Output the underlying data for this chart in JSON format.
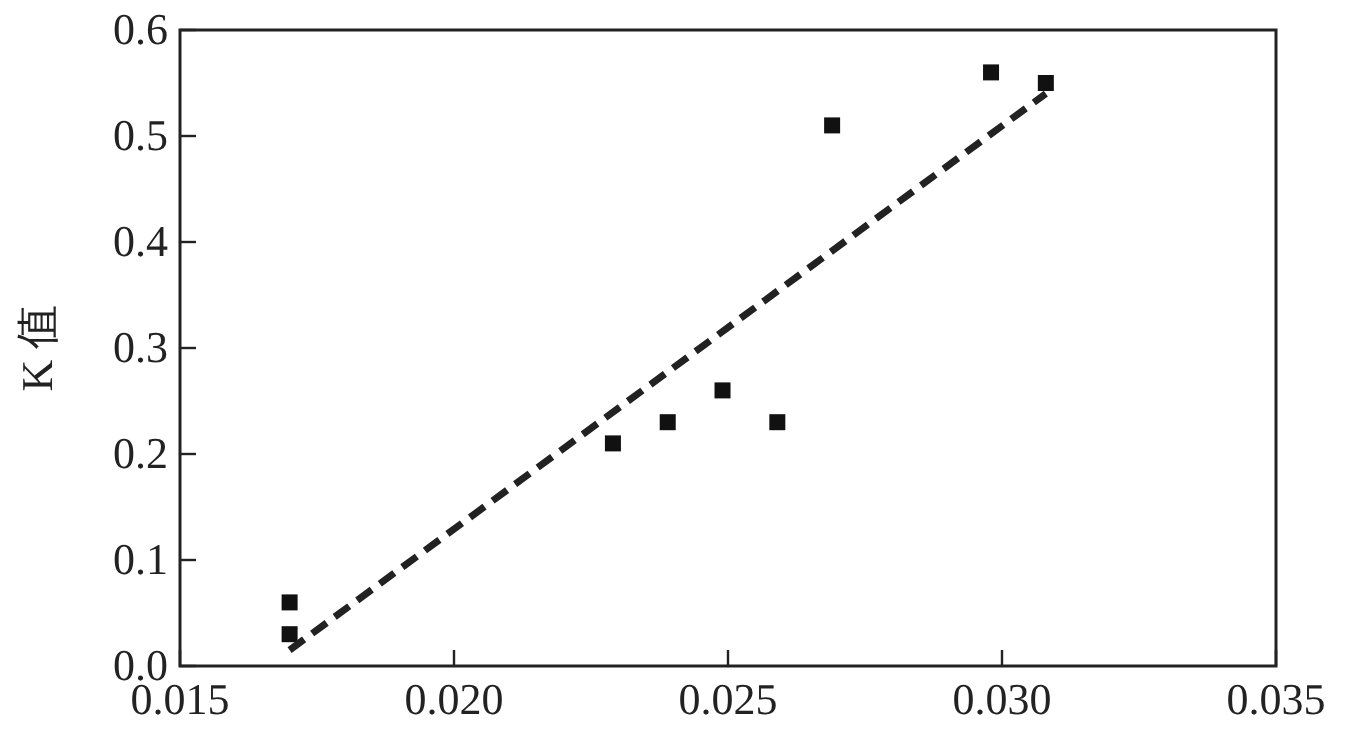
{
  "chart_data": {
    "type": "scatter",
    "ylabel": "K 值",
    "xlim": [
      0.015,
      0.035
    ],
    "ylim": [
      0,
      0.6
    ],
    "xticks": [
      {
        "value": 0.015,
        "label": "0.015"
      },
      {
        "value": 0.02,
        "label": "0.020"
      },
      {
        "value": 0.025,
        "label": "0.025"
      },
      {
        "value": 0.03,
        "label": "0.030"
      },
      {
        "value": 0.035,
        "label": "0.035"
      }
    ],
    "yticks": [
      {
        "value": 0,
        "label": "0.0"
      },
      {
        "value": 0.1,
        "label": "0.1"
      },
      {
        "value": 0.2,
        "label": "0.2"
      },
      {
        "value": 0.3,
        "label": "0.3"
      },
      {
        "value": 0.4,
        "label": "0.4"
      },
      {
        "value": 0.5,
        "label": "0.5"
      },
      {
        "value": 0.6,
        "label": "0.6"
      }
    ],
    "grid": false,
    "series": [
      {
        "type": "scatter",
        "color": "#111111",
        "marker": "square",
        "x": [
          0.017,
          0.017,
          0.0229,
          0.0239,
          0.0249,
          0.0259,
          0.0269,
          0.0298,
          0.0308
        ],
        "values": [
          0.06,
          0.03,
          0.21,
          0.23,
          0.26,
          0.23,
          0.51,
          0.56,
          0.55
        ]
      },
      {
        "type": "line",
        "color": "#222222",
        "marker": "none",
        "line_style": "dashed",
        "x": [
          0.017,
          0.0308
        ],
        "values": [
          0.015,
          0.54
        ]
      }
    ]
  }
}
